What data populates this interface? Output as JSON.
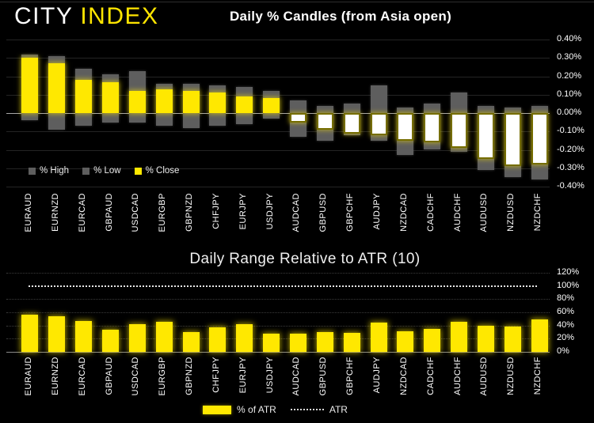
{
  "brand": {
    "city": "CITY",
    "index": "INDEX",
    "accent_color": "#FFE500"
  },
  "colors": {
    "background": "#000000",
    "bar_yellow": "#FFE800",
    "bar_gray": "#5E5E5E",
    "down_candle_fill": "#FFFFFF",
    "axis_text": "#FFFFFF"
  },
  "chart_data": [
    {
      "type": "bar",
      "subtype": "percent-candles",
      "title": "Daily % Candles (from Asia open)",
      "categories": [
        "EURAUD",
        "EURNZD",
        "EURCAD",
        "GBPAUD",
        "USDCAD",
        "EURGBP",
        "GBPNZD",
        "CHFJPY",
        "EURJPY",
        "USDJPY",
        "AUDCAD",
        "GBPUSD",
        "GBPCHF",
        "AUDJPY",
        "NZDCAD",
        "CADCHF",
        "AUDCHF",
        "AUDUSD",
        "NZDUSD",
        "NZDCHF"
      ],
      "series": [
        {
          "name": "% High",
          "values": [
            0.32,
            0.31,
            0.24,
            0.21,
            0.23,
            0.16,
            0.16,
            0.15,
            0.14,
            0.12,
            0.07,
            0.04,
            0.05,
            0.15,
            0.03,
            0.05,
            0.11,
            0.04,
            0.03,
            0.04
          ]
        },
        {
          "name": "% Low",
          "values": [
            -0.04,
            -0.09,
            -0.07,
            -0.05,
            -0.05,
            -0.07,
            -0.08,
            -0.07,
            -0.06,
            -0.03,
            -0.13,
            -0.15,
            -0.12,
            -0.15,
            -0.23,
            -0.2,
            -0.21,
            -0.31,
            -0.35,
            -0.36
          ]
        },
        {
          "name": "% Close",
          "values": [
            0.3,
            0.27,
            0.18,
            0.17,
            0.12,
            0.13,
            0.12,
            0.11,
            0.09,
            0.08,
            -0.05,
            -0.09,
            -0.11,
            -0.12,
            -0.15,
            -0.16,
            -0.19,
            -0.25,
            -0.29,
            -0.28
          ]
        }
      ],
      "ylim": [
        -0.4,
        0.4
      ],
      "grid": true,
      "legend_position": "bottom-left",
      "yticks": [
        {
          "v": 0.4,
          "label": "0.40%"
        },
        {
          "v": 0.3,
          "label": "0.30%"
        },
        {
          "v": 0.2,
          "label": "0.20%"
        },
        {
          "v": 0.1,
          "label": "0.10%"
        },
        {
          "v": 0.0,
          "label": "0.00%"
        },
        {
          "v": -0.1,
          "label": "-0.10%"
        },
        {
          "v": -0.2,
          "label": "-0.20%"
        },
        {
          "v": -0.3,
          "label": "-0.30%"
        },
        {
          "v": -0.4,
          "label": "-0.40%"
        }
      ]
    },
    {
      "type": "bar",
      "title": "Daily Range Relative to ATR (10)",
      "categories": [
        "EURAUD",
        "EURNZD",
        "EURCAD",
        "GBPAUD",
        "USDCAD",
        "EURGBP",
        "GBPNZD",
        "CHFJPY",
        "EURJPY",
        "USDJPY",
        "AUDCAD",
        "GBPUSD",
        "GBPCHF",
        "AUDJPY",
        "NZDCAD",
        "CADCHF",
        "AUDCHF",
        "AUDUSD",
        "NZDUSD",
        "NZDCHF"
      ],
      "series": [
        {
          "name": "% of ATR",
          "values": [
            56,
            54,
            47,
            34,
            42,
            45,
            30,
            37,
            42,
            28,
            28,
            30,
            29,
            44,
            31,
            35,
            45,
            40,
            38,
            49
          ]
        },
        {
          "name": "ATR",
          "style": "dotted-reference-line",
          "value": 100
        }
      ],
      "ylim": [
        0,
        120
      ],
      "grid": true,
      "legend_position": "bottom-center",
      "yticks": [
        {
          "v": 120,
          "label": "120%"
        },
        {
          "v": 100,
          "label": "100%"
        },
        {
          "v": 80,
          "label": "80%"
        },
        {
          "v": 60,
          "label": "60%"
        },
        {
          "v": 40,
          "label": "40%"
        },
        {
          "v": 20,
          "label": "20%"
        },
        {
          "v": 0,
          "label": "0%"
        }
      ]
    }
  ]
}
